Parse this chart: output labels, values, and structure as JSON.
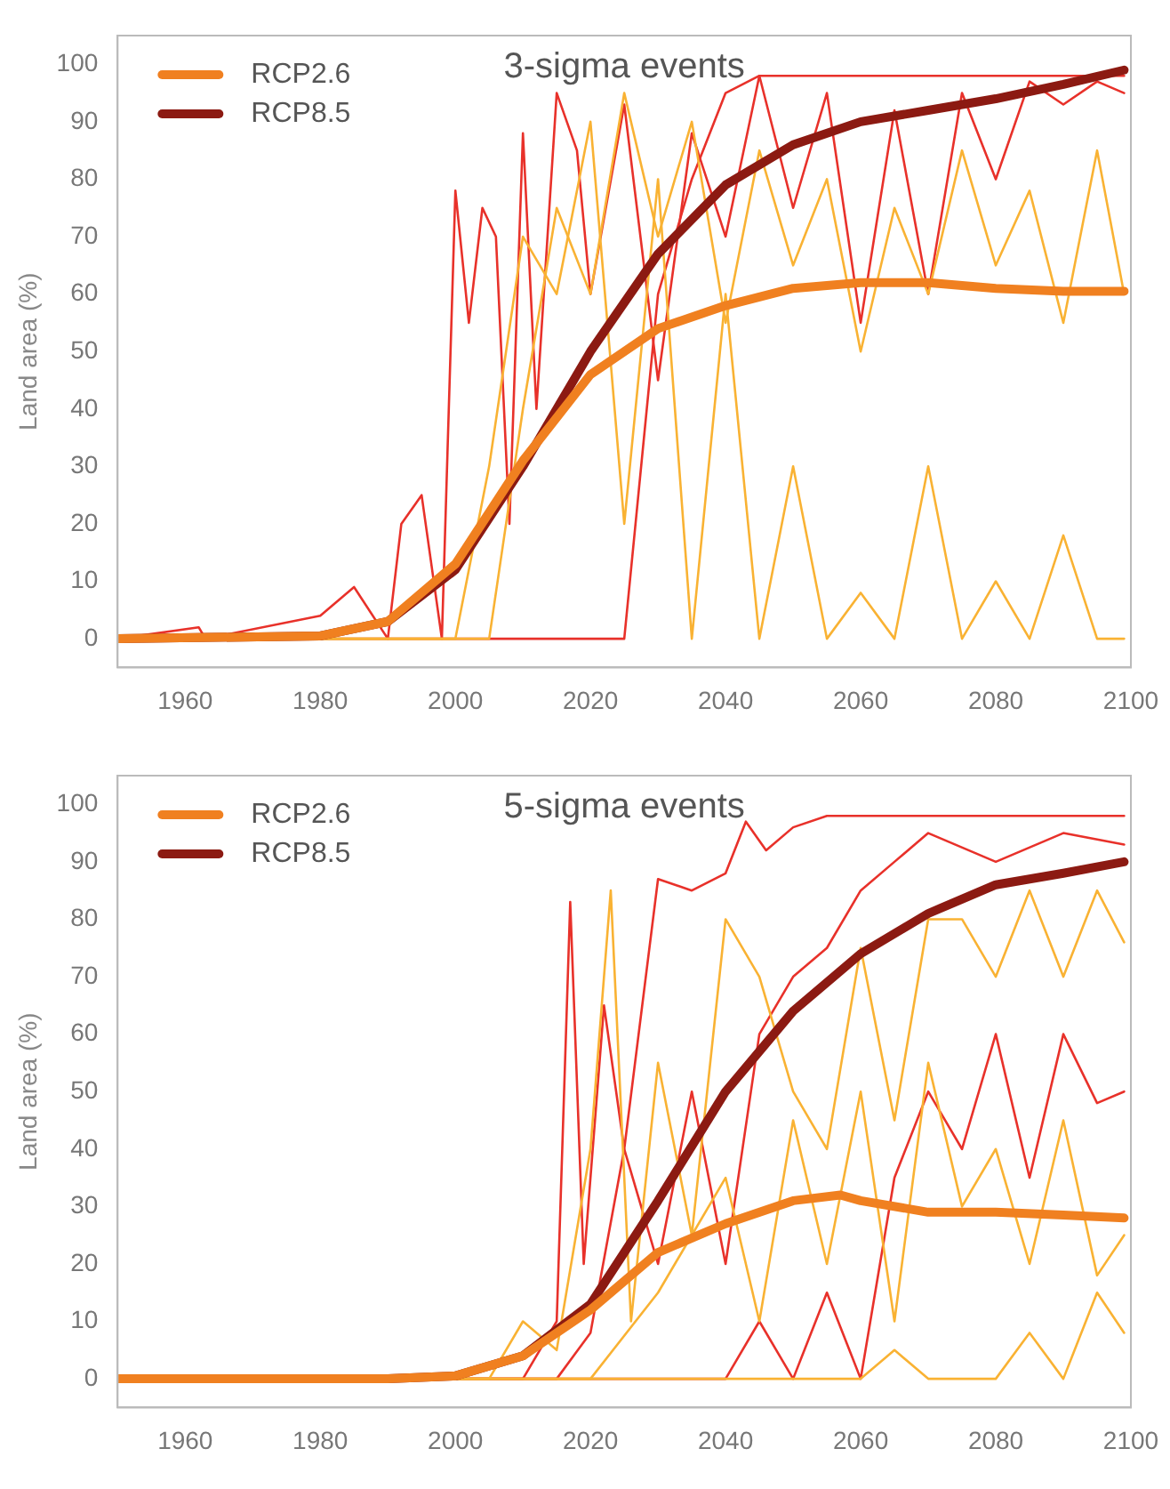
{
  "chart_data": [
    {
      "type": "line",
      "title": "3-sigma events",
      "ylabel": "Land area (%)",
      "xlim": [
        1950,
        2100
      ],
      "xticks": [
        1960,
        1980,
        2000,
        2020,
        2040,
        2060,
        2080,
        2100
      ],
      "ylim": [
        -5,
        105
      ],
      "yticks": [
        0,
        10,
        20,
        30,
        40,
        50,
        60,
        70,
        80,
        90,
        100
      ],
      "grid": false,
      "legend": "top left",
      "series": [
        {
          "color": "#f9b233",
          "x": [
            1950,
            2000,
            2005,
            2010,
            2015,
            2020,
            2025,
            2030,
            2035,
            2040,
            2045,
            2050,
            2055,
            2060,
            2065,
            2070,
            2075,
            2080,
            2085,
            2090,
            2095,
            2099
          ],
          "values": [
            0,
            0,
            30,
            70,
            60,
            90,
            20,
            80,
            0,
            60,
            0,
            30,
            0,
            8,
            0,
            30,
            0,
            10,
            0,
            18,
            0,
            0
          ]
        },
        {
          "color": "#f9b233",
          "x": [
            1950,
            2005,
            2010,
            2015,
            2020,
            2025,
            2030,
            2035,
            2040,
            2045,
            2050,
            2055,
            2060,
            2065,
            2070,
            2075,
            2080,
            2085,
            2090,
            2095,
            2099
          ],
          "values": [
            0,
            0,
            40,
            75,
            60,
            95,
            70,
            90,
            55,
            85,
            65,
            80,
            50,
            75,
            60,
            85,
            65,
            78,
            55,
            85,
            60
          ]
        },
        {
          "color": "#e8312a",
          "x": [
            1950,
            1962,
            1963,
            1980,
            1985,
            1990,
            1992,
            1995,
            1998,
            2000,
            2002,
            2004,
            2006,
            2008,
            2010,
            2012,
            2015,
            2018,
            2020,
            2025,
            2030,
            2035,
            2040,
            2045,
            2050,
            2055,
            2060,
            2065,
            2070,
            2075,
            2080,
            2085,
            2090,
            2095,
            2099
          ],
          "values": [
            0,
            2,
            0,
            4,
            9,
            0,
            20,
            25,
            0,
            78,
            55,
            75,
            70,
            20,
            88,
            40,
            95,
            85,
            60,
            93,
            45,
            88,
            70,
            98,
            75,
            95,
            55,
            92,
            60,
            95,
            80,
            97,
            93,
            97,
            95
          ]
        },
        {
          "color": "#e8312a",
          "x": [
            1950,
            2025,
            2030,
            2035,
            2040,
            2045,
            2099
          ],
          "values": [
            0,
            0,
            60,
            80,
            95,
            98,
            98
          ]
        },
        {
          "name": "RCP2.6",
          "color": "#f08020",
          "x": [
            1950,
            1980,
            1990,
            2000,
            2010,
            2020,
            2030,
            2040,
            2050,
            2060,
            2070,
            2080,
            2090,
            2099
          ],
          "values": [
            0,
            0.5,
            3,
            13,
            31,
            46,
            54,
            58,
            61,
            62,
            62,
            61,
            60.5,
            60.5
          ]
        },
        {
          "name": "RCP8.5",
          "color": "#8c1a12",
          "x": [
            1950,
            1980,
            1990,
            2000,
            2010,
            2020,
            2030,
            2040,
            2050,
            2060,
            2070,
            2080,
            2090,
            2099
          ],
          "values": [
            0,
            0.5,
            3,
            12,
            30,
            50,
            67,
            79,
            86,
            90,
            92,
            94,
            96.5,
            99
          ]
        }
      ]
    },
    {
      "type": "line",
      "title": "5-sigma events",
      "ylabel": "Land area (%)",
      "xlim": [
        1950,
        2100
      ],
      "xticks": [
        1960,
        1980,
        2000,
        2020,
        2040,
        2060,
        2080,
        2100
      ],
      "ylim": [
        -5,
        105
      ],
      "yticks": [
        0,
        10,
        20,
        30,
        40,
        50,
        60,
        70,
        80,
        90,
        100
      ],
      "grid": false,
      "legend": "top left",
      "series": [
        {
          "color": "#f9b233",
          "x": [
            1950,
            2005,
            2010,
            2015,
            2020,
            2023,
            2026,
            2030,
            2035,
            2040,
            2045,
            2050,
            2055,
            2060,
            2065,
            2070,
            2075,
            2080,
            2085,
            2090,
            2095,
            2099
          ],
          "values": [
            0,
            0,
            10,
            5,
            40,
            85,
            10,
            55,
            25,
            80,
            70,
            50,
            40,
            75,
            45,
            80,
            80,
            70,
            85,
            70,
            85,
            76
          ]
        },
        {
          "color": "#f9b233",
          "x": [
            1950,
            2020,
            2030,
            2040,
            2045,
            2050,
            2055,
            2060,
            2065,
            2070,
            2075,
            2080,
            2085,
            2090,
            2095,
            2099
          ],
          "values": [
            0,
            0,
            15,
            35,
            10,
            45,
            20,
            50,
            10,
            55,
            30,
            40,
            20,
            45,
            18,
            25
          ]
        },
        {
          "color": "#f9b233",
          "x": [
            1950,
            2060,
            2065,
            2070,
            2080,
            2085,
            2090,
            2095,
            2099
          ],
          "values": [
            0,
            0,
            5,
            0,
            0,
            8,
            0,
            15,
            8
          ]
        },
        {
          "color": "#e8312a",
          "x": [
            1950,
            2010,
            2015,
            2017,
            2019,
            2022,
            2025,
            2030,
            2035,
            2040,
            2043,
            2046,
            2050,
            2055,
            2099
          ],
          "values": [
            0,
            0,
            10,
            83,
            20,
            65,
            40,
            87,
            85,
            88,
            97,
            92,
            96,
            98,
            98
          ]
        },
        {
          "color": "#e8312a",
          "x": [
            1950,
            2015,
            2020,
            2025,
            2030,
            2035,
            2040,
            2045,
            2050,
            2055,
            2060,
            2065,
            2070,
            2080,
            2090,
            2099
          ],
          "values": [
            0,
            0,
            8,
            40,
            20,
            50,
            20,
            60,
            70,
            75,
            85,
            90,
            95,
            90,
            95,
            93
          ]
        },
        {
          "color": "#e8312a",
          "x": [
            1950,
            2040,
            2045,
            2050,
            2055,
            2060,
            2065,
            2070,
            2075,
            2080,
            2085,
            2090,
            2095,
            2099
          ],
          "values": [
            0,
            0,
            10,
            0,
            15,
            0,
            35,
            50,
            40,
            60,
            35,
            60,
            48,
            50
          ]
        },
        {
          "name": "RCP2.6",
          "color": "#f08020",
          "x": [
            1950,
            1990,
            2000,
            2010,
            2020,
            2030,
            2040,
            2050,
            2057,
            2060,
            2070,
            2080,
            2090,
            2099
          ],
          "values": [
            0,
            0,
            0.5,
            4,
            12,
            22,
            27,
            31,
            32,
            31,
            29,
            29,
            28.5,
            28
          ]
        },
        {
          "name": "RCP8.5",
          "color": "#8c1a12",
          "x": [
            1950,
            1990,
            2000,
            2010,
            2020,
            2030,
            2040,
            2050,
            2060,
            2070,
            2080,
            2090,
            2099
          ],
          "values": [
            0,
            0,
            0.5,
            4,
            13,
            31,
            50,
            64,
            74,
            81,
            86,
            88,
            90
          ]
        }
      ]
    }
  ]
}
